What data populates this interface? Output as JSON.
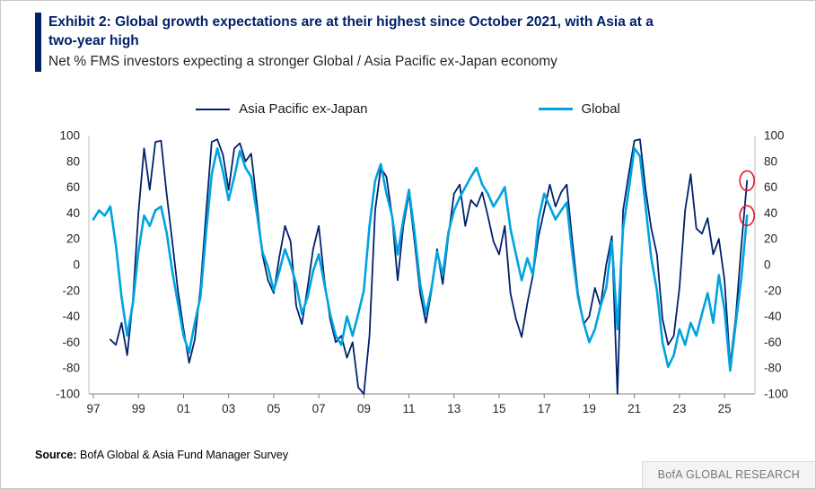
{
  "theme": {
    "navy": "#012169",
    "annotation_red": "#e31837"
  },
  "header": {
    "title_line1": "Exhibit 2: Global growth expectations are at their highest since October 2021, with Asia at a",
    "title_line2": "two-year high",
    "subtitle": "Net % FMS investors expecting a stronger Global / Asia Pacific ex-Japan economy"
  },
  "footer": {
    "source_label": "Source:",
    "source_text": " BofA Global & Asia Fund Manager Survey",
    "brand": "BofA GLOBAL RESEARCH"
  },
  "chart_data": {
    "type": "line",
    "title": "Exhibit 2: Global growth expectations are at their highest since October 2021, with Asia at a two-year high",
    "subtitle": "Net % FMS investors expecting a stronger Global / Asia Pacific ex-Japan economy",
    "xlabel": "",
    "ylabel": "Net %",
    "grid": false,
    "legend_position": "top",
    "x_range": [
      1996.8,
      2026.35
    ],
    "ylim": [
      -100,
      100
    ],
    "yticks": [
      100,
      80,
      60,
      40,
      20,
      0,
      -20,
      -40,
      -60,
      -80,
      -100
    ],
    "xticks": [
      {
        "v": 1997,
        "label": "97"
      },
      {
        "v": 1999,
        "label": "99"
      },
      {
        "v": 2001,
        "label": "01"
      },
      {
        "v": 2003,
        "label": "03"
      },
      {
        "v": 2005,
        "label": "05"
      },
      {
        "v": 2007,
        "label": "07"
      },
      {
        "v": 2009,
        "label": "09"
      },
      {
        "v": 2011,
        "label": "11"
      },
      {
        "v": 2013,
        "label": "13"
      },
      {
        "v": 2015,
        "label": "15"
      },
      {
        "v": 2017,
        "label": "17"
      },
      {
        "v": 2019,
        "label": "19"
      },
      {
        "v": 2021,
        "label": "21"
      },
      {
        "v": 2023,
        "label": "23"
      },
      {
        "v": 2025,
        "label": "25"
      }
    ],
    "axis_color": "#7f7f7f",
    "axis_color_light": "#bfbfbf",
    "annotation_color": "#e31837",
    "annotations": [
      {
        "type": "circle",
        "x": 2026.0,
        "y": 65,
        "note": "Asia Pacific ex-Japan latest, two-year high"
      },
      {
        "type": "circle",
        "x": 2026.0,
        "y": 38,
        "note": "Global latest, highest since October 2021"
      }
    ],
    "series": [
      {
        "id": "asia",
        "name": "Asia Pacific ex-Japan",
        "color": "#012169",
        "width": 1.8,
        "x_start": 1997.0,
        "x_step": 0.25,
        "y": [
          null,
          null,
          null,
          -58,
          -62,
          -45,
          -70,
          -28,
          40,
          90,
          58,
          95,
          96,
          55,
          18,
          -20,
          -50,
          -76,
          -58,
          -18,
          40,
          95,
          97,
          85,
          58,
          90,
          94,
          80,
          86,
          48,
          8,
          -12,
          -22,
          6,
          30,
          18,
          -32,
          -46,
          -18,
          12,
          30,
          -12,
          -42,
          -60,
          -55,
          -72,
          -60,
          -95,
          -100,
          -55,
          42,
          75,
          68,
          38,
          -12,
          30,
          55,
          18,
          -22,
          -45,
          -20,
          12,
          -15,
          22,
          55,
          62,
          30,
          50,
          45,
          56,
          38,
          18,
          8,
          30,
          -22,
          -42,
          -56,
          -30,
          -8,
          22,
          42,
          62,
          45,
          56,
          62,
          18,
          -22,
          -46,
          -40,
          -18,
          -32,
          0,
          22,
          -100,
          42,
          70,
          96,
          97,
          58,
          28,
          8,
          -42,
          -62,
          -55,
          -18,
          42,
          70,
          28,
          24,
          36,
          8,
          20,
          -12,
          -78,
          -40,
          15,
          65
        ]
      },
      {
        "id": "global",
        "name": "Global",
        "color": "#00a3e0",
        "width": 2.6,
        "x_start": 1997.0,
        "x_step": 0.25,
        "y": [
          35,
          42,
          38,
          45,
          15,
          -25,
          -55,
          -30,
          10,
          38,
          30,
          42,
          45,
          25,
          -5,
          -30,
          -55,
          -68,
          -45,
          -25,
          25,
          70,
          90,
          72,
          50,
          68,
          88,
          75,
          68,
          40,
          10,
          -2,
          -20,
          -5,
          12,
          0,
          -15,
          -38,
          -25,
          -5,
          8,
          -15,
          -38,
          -55,
          -62,
          -40,
          -55,
          -38,
          -20,
          30,
          65,
          78,
          55,
          38,
          8,
          35,
          58,
          25,
          -15,
          -38,
          -18,
          10,
          -8,
          25,
          42,
          52,
          60,
          68,
          75,
          62,
          55,
          45,
          52,
          60,
          28,
          8,
          -12,
          5,
          -8,
          35,
          55,
          45,
          35,
          42,
          48,
          8,
          -25,
          -45,
          -60,
          -50,
          -32,
          -18,
          18,
          -50,
          28,
          58,
          90,
          84,
          45,
          5,
          -20,
          -60,
          -79,
          -70,
          -50,
          -62,
          -45,
          -55,
          -38,
          -22,
          -45,
          -8,
          -35,
          -82,
          -45,
          -10,
          38
        ]
      }
    ]
  }
}
